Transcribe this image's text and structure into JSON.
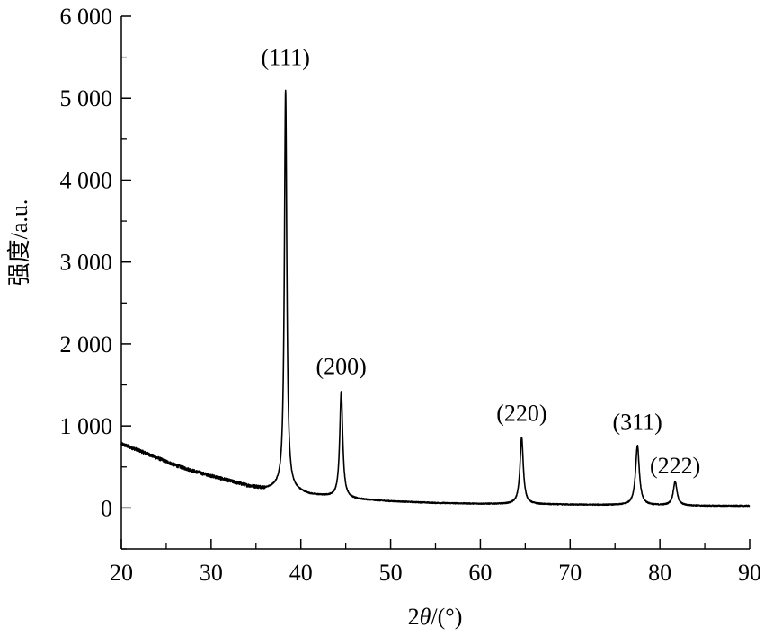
{
  "chart_data": {
    "type": "line",
    "xlabel_prefix": "2",
    "xlabel_theta": "θ",
    "xlabel_suffix": "/(°)",
    "ylabel": "强度/a.u.",
    "xlim": [
      20,
      90
    ],
    "ylim": [
      -500,
      6000
    ],
    "x_ticks": [
      20,
      30,
      40,
      50,
      60,
      70,
      80,
      90
    ],
    "x_tick_labels": [
      "20",
      "30",
      "40",
      "50",
      "60",
      "70",
      "80",
      "90"
    ],
    "y_ticks": [
      0,
      1000,
      2000,
      3000,
      4000,
      5000,
      6000
    ],
    "y_tick_labels": [
      "0",
      "1 000",
      "2 000",
      "3 000",
      "4 000",
      "5 000",
      "6 000"
    ],
    "grid": false,
    "series": [
      {
        "baseline": [
          [
            20,
            780
          ],
          [
            22,
            700
          ],
          [
            24,
            610
          ],
          [
            26,
            520
          ],
          [
            28,
            450
          ],
          [
            30,
            390
          ],
          [
            32,
            330
          ],
          [
            34,
            270
          ],
          [
            36,
            230
          ],
          [
            37.5,
            240
          ],
          [
            39.5,
            200
          ],
          [
            41,
            160
          ],
          [
            43,
            140
          ],
          [
            46,
            105
          ],
          [
            50,
            80
          ],
          [
            55,
            60
          ],
          [
            60,
            50
          ],
          [
            65,
            45
          ],
          [
            70,
            40
          ],
          [
            75,
            35
          ],
          [
            80,
            30
          ],
          [
            85,
            25
          ],
          [
            90,
            25
          ]
        ],
        "peaks": [
          {
            "x": 38.3,
            "y": 5100,
            "width": 0.16
          },
          {
            "x": 44.5,
            "y": 1420,
            "width": 0.2
          },
          {
            "x": 64.6,
            "y": 860,
            "width": 0.22
          },
          {
            "x": 77.5,
            "y": 760,
            "width": 0.25
          },
          {
            "x": 81.7,
            "y": 320,
            "width": 0.25
          }
        ]
      }
    ],
    "annotations": [
      {
        "text": "(111)",
        "x": 38.3,
        "y": 5400
      },
      {
        "text": "(200)",
        "x": 44.5,
        "y": 1630
      },
      {
        "text": "(220)",
        "x": 64.6,
        "y": 1060
      },
      {
        "text": "(311)",
        "x": 77.5,
        "y": 950
      },
      {
        "text": "(222)",
        "x": 81.7,
        "y": 420
      }
    ]
  }
}
